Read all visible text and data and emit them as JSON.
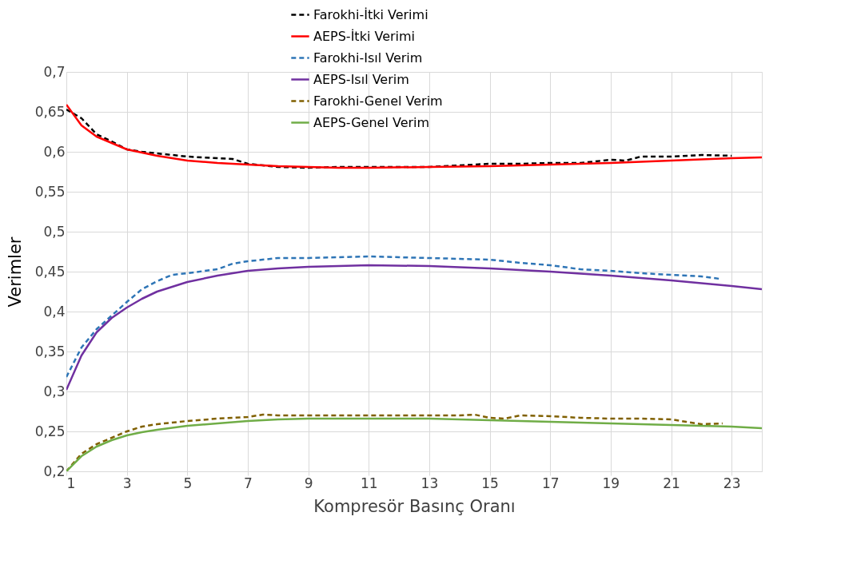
{
  "chart_data": {
    "type": "line",
    "xlabel": "Kompresör Basınç Oranı",
    "ylabel": "Verimler",
    "xlim": [
      1,
      24
    ],
    "xticks": [
      1,
      3,
      5,
      7,
      9,
      11,
      13,
      15,
      17,
      19,
      21,
      23
    ],
    "ylim": [
      0.2,
      0.7
    ],
    "yticks": [
      {
        "value": 0.2,
        "label": "0,2"
      },
      {
        "value": 0.25,
        "label": "0,25"
      },
      {
        "value": 0.3,
        "label": "0,3"
      },
      {
        "value": 0.35,
        "label": "0,35"
      },
      {
        "value": 0.4,
        "label": "0,4"
      },
      {
        "value": 0.45,
        "label": "0,45"
      },
      {
        "value": 0.5,
        "label": "0,5"
      },
      {
        "value": 0.55,
        "label": "0,55"
      },
      {
        "value": 0.6,
        "label": "0,6"
      },
      {
        "value": 0.65,
        "label": "0,65"
      },
      {
        "value": 0.7,
        "label": "0,7"
      }
    ],
    "grid": true,
    "legend": "top",
    "marker": "none",
    "series": [
      {
        "name": "Farokhi-İtki Verimi",
        "color": "#000000",
        "line_style": "dashed",
        "x": [
          1,
          1.5,
          2,
          2.5,
          3,
          3.5,
          4,
          5,
          6,
          6.5,
          7,
          7.5,
          8,
          9,
          10,
          11,
          12,
          13,
          14,
          15,
          16,
          17,
          18,
          19,
          19.5,
          20,
          20.5,
          21,
          22,
          23
        ],
        "values": [
          0.653,
          0.642,
          0.622,
          0.613,
          0.603,
          0.6,
          0.598,
          0.594,
          0.592,
          0.591,
          0.585,
          0.583,
          0.581,
          0.58,
          0.581,
          0.581,
          0.581,
          0.581,
          0.583,
          0.585,
          0.585,
          0.586,
          0.586,
          0.59,
          0.589,
          0.594,
          0.594,
          0.594,
          0.596,
          0.595
        ]
      },
      {
        "name": "AEPS-İtki Verimi",
        "color": "#ff0000",
        "line_style": "solid",
        "x": [
          1,
          1.5,
          2,
          2.5,
          3,
          4,
          5,
          6,
          7,
          8,
          9,
          10,
          11,
          13,
          15,
          17,
          19,
          21,
          23,
          24
        ],
        "values": [
          0.659,
          0.633,
          0.619,
          0.611,
          0.603,
          0.595,
          0.589,
          0.586,
          0.584,
          0.582,
          0.581,
          0.58,
          0.58,
          0.581,
          0.582,
          0.584,
          0.586,
          0.589,
          0.592,
          0.593
        ]
      },
      {
        "name": "Farokhi-Isıl Verim",
        "color": "#2e75b6",
        "line_style": "dashed",
        "x": [
          1,
          1.5,
          2,
          2.5,
          3,
          3.5,
          4,
          4.5,
          5,
          6,
          6.5,
          7,
          8,
          9,
          10,
          11,
          12,
          13,
          14,
          15,
          16,
          17,
          18,
          19,
          20,
          21,
          22,
          22.6
        ],
        "values": [
          0.318,
          0.355,
          0.378,
          0.395,
          0.412,
          0.428,
          0.438,
          0.446,
          0.448,
          0.453,
          0.46,
          0.463,
          0.467,
          0.467,
          0.468,
          0.469,
          0.468,
          0.467,
          0.466,
          0.465,
          0.461,
          0.458,
          0.453,
          0.451,
          0.448,
          0.446,
          0.444,
          0.441
        ]
      },
      {
        "name": "AEPS-Isıl Verim",
        "color": "#7030a0",
        "line_style": "solid",
        "x": [
          1,
          1.5,
          2,
          2.5,
          3,
          3.5,
          4,
          5,
          6,
          7,
          8,
          9,
          10,
          11,
          13,
          15,
          17,
          19,
          21,
          23,
          24
        ],
        "values": [
          0.302,
          0.345,
          0.374,
          0.392,
          0.405,
          0.416,
          0.425,
          0.437,
          0.445,
          0.451,
          0.454,
          0.456,
          0.457,
          0.458,
          0.457,
          0.454,
          0.45,
          0.445,
          0.439,
          0.432,
          0.428
        ]
      },
      {
        "name": "Farokhi-Genel Verim",
        "color": "#806000",
        "line_style": "dashed",
        "x": [
          1,
          1.5,
          2,
          2.5,
          3,
          3.5,
          4,
          5,
          6,
          7,
          7.5,
          8,
          9,
          10,
          11,
          13,
          14,
          14.5,
          15,
          15.5,
          16,
          17,
          18,
          19,
          20,
          21,
          21.5,
          22,
          22.7
        ],
        "values": [
          0.2,
          0.222,
          0.234,
          0.242,
          0.25,
          0.256,
          0.259,
          0.263,
          0.266,
          0.268,
          0.271,
          0.27,
          0.27,
          0.27,
          0.27,
          0.27,
          0.27,
          0.271,
          0.267,
          0.266,
          0.27,
          0.269,
          0.267,
          0.266,
          0.266,
          0.265,
          0.262,
          0.259,
          0.26
        ]
      },
      {
        "name": "AEPS-Genel Verim",
        "color": "#70ad47",
        "line_style": "solid",
        "x": [
          1,
          1.5,
          2,
          2.5,
          3,
          3.5,
          4,
          5,
          6,
          7,
          8,
          9,
          11,
          13,
          15,
          17,
          19,
          21,
          23,
          24
        ],
        "values": [
          0.2,
          0.219,
          0.231,
          0.239,
          0.245,
          0.249,
          0.252,
          0.257,
          0.26,
          0.263,
          0.265,
          0.266,
          0.266,
          0.266,
          0.264,
          0.262,
          0.26,
          0.258,
          0.256,
          0.254
        ]
      }
    ]
  }
}
